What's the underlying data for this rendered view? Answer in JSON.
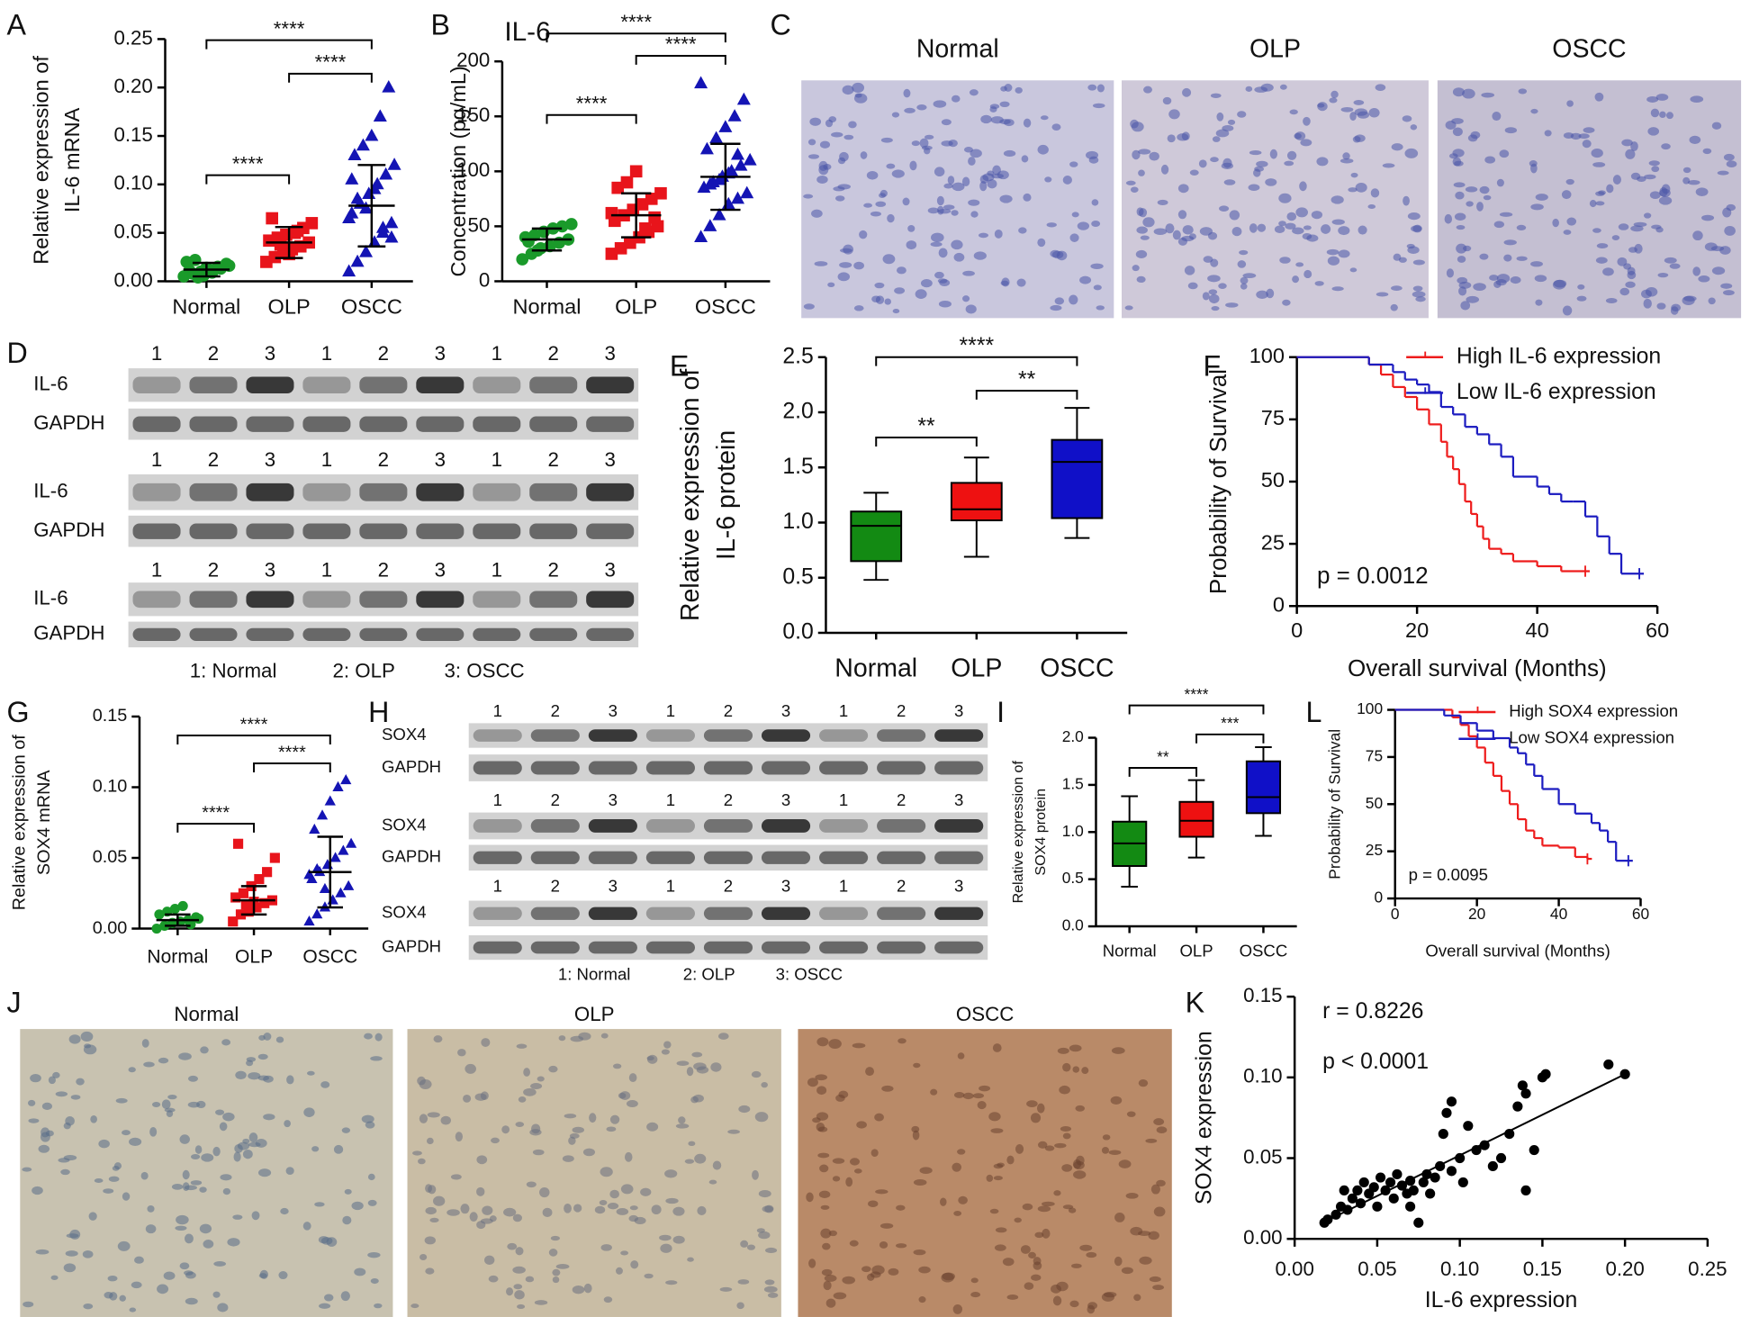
{
  "chart_data": [
    {
      "type": "dotplot",
      "panel": "A",
      "ylabel": [
        "Relative expression of",
        "IL-6 mRNA"
      ],
      "categories": [
        "Normal",
        "OLP",
        "OSCC"
      ],
      "colors": [
        "#1a9a2a",
        "#e8141b",
        "#1414b4"
      ],
      "markers": [
        "circle",
        "square",
        "triangle"
      ],
      "points": [
        [
          0.005,
          0.008,
          0.01,
          0.012,
          0.015,
          0.018,
          0.02,
          0.022,
          0.006,
          0.009,
          0.013,
          0.016,
          0.011,
          0.004,
          0.014
        ],
        [
          0.02,
          0.025,
          0.03,
          0.033,
          0.036,
          0.04,
          0.042,
          0.045,
          0.048,
          0.05,
          0.055,
          0.06,
          0.065,
          0.038,
          0.028,
          0.052
        ],
        [
          0.01,
          0.02,
          0.03,
          0.04,
          0.05,
          0.06,
          0.07,
          0.08,
          0.09,
          0.1,
          0.11,
          0.12,
          0.13,
          0.14,
          0.15,
          0.17,
          0.2,
          0.065,
          0.085,
          0.075,
          0.095,
          0.055,
          0.045,
          0.105
        ]
      ],
      "mean": [
        0.012,
        0.04,
        0.078
      ],
      "sd": [
        0.007,
        0.016,
        0.042
      ],
      "significance": [
        "****",
        "****",
        "****"
      ],
      "ylim": [
        0,
        0.25
      ],
      "yticks": [
        {
          "value": 0,
          "label": "0.00"
        },
        0.05,
        {
          "value": 0.1,
          "label": "0.10"
        },
        0.15,
        {
          "value": 0.2,
          "label": "0.20"
        },
        0.25
      ]
    },
    {
      "type": "dotplot",
      "panel": "B",
      "title": "IL-6",
      "ylabel": [
        "Concentration (pg/mL)"
      ],
      "categories": [
        "Normal",
        "OLP",
        "OSCC"
      ],
      "colors": [
        "#1a9a2a",
        "#e8141b",
        "#1414b4"
      ],
      "markers": [
        "circle",
        "square",
        "triangle"
      ],
      "points": [
        [
          20,
          25,
          30,
          32,
          35,
          38,
          40,
          42,
          45,
          48,
          50,
          52,
          36,
          28
        ],
        [
          25,
          30,
          35,
          40,
          45,
          50,
          55,
          60,
          65,
          70,
          75,
          80,
          85,
          90,
          100,
          48,
          58,
          62
        ],
        [
          40,
          50,
          60,
          70,
          75,
          80,
          85,
          90,
          95,
          100,
          105,
          110,
          120,
          130,
          140,
          150,
          165,
          180,
          88,
          92,
          98,
          115
        ]
      ],
      "mean": [
        38,
        60,
        95
      ],
      "sd": [
        10,
        20,
        30
      ],
      "significance": [
        "****",
        "****",
        "****"
      ],
      "ylim": [
        0,
        200
      ],
      "yticks": [
        0,
        50,
        100,
        150,
        200
      ]
    },
    {
      "type": "image",
      "panel": "C",
      "labels": [
        "Normal",
        "OLP",
        "OSCC"
      ]
    },
    {
      "type": "blot",
      "panel": "D",
      "blocks": [
        {
          "lanes": [
            "1",
            "2",
            "3",
            "1",
            "2",
            "3",
            "1",
            "2",
            "3"
          ],
          "rows": [
            "IL-6",
            "GAPDH"
          ]
        },
        {
          "lanes": [
            "1",
            "2",
            "3",
            "1",
            "2",
            "3",
            "1",
            "2",
            "3"
          ],
          "rows": [
            "IL-6",
            "GAPDH"
          ]
        },
        {
          "lanes": [
            "1",
            "2",
            "3",
            "1",
            "2",
            "3",
            "1",
            "2",
            "3"
          ],
          "rows": [
            "IL-6",
            "GAPDH"
          ]
        }
      ],
      "legend": [
        "1: Normal",
        "2: OLP",
        "3: OSCC"
      ]
    },
    {
      "type": "boxplot",
      "panel": "E",
      "ylabel": [
        "Relative expression of",
        "IL-6 protein"
      ],
      "categories": [
        "Normal",
        "OLP",
        "OSCC"
      ],
      "colors": [
        "#138a13",
        "#ee1111",
        "#1010c8"
      ],
      "min": [
        0.48,
        0.69,
        0.86
      ],
      "q1": [
        0.65,
        1.02,
        1.04
      ],
      "median": [
        0.97,
        1.12,
        1.55
      ],
      "q3": [
        1.1,
        1.36,
        1.75
      ],
      "max": [
        1.27,
        1.59,
        2.04
      ],
      "significance": [
        "**",
        "**",
        "****"
      ],
      "ylim": [
        0,
        2.5
      ],
      "yticks": [
        {
          "value": 0,
          "label": "0.0"
        },
        0.5,
        {
          "value": 1,
          "label": "1.0"
        },
        1.5,
        {
          "value": 2,
          "label": "2.0"
        },
        2.5
      ]
    },
    {
      "type": "survival",
      "panel": "F",
      "xlabel": "Overall survival (Months)",
      "ylabel": "Probability of Survival",
      "annotation": "p = 0.0012",
      "series": [
        {
          "name": "High IL-6 expression",
          "color": "#ee1c1c",
          "x": [
            0,
            12,
            14,
            16,
            18,
            20,
            22,
            24,
            25,
            26,
            27,
            28,
            29,
            30,
            31,
            32,
            34,
            36,
            40,
            44,
            48
          ],
          "values": [
            100,
            97,
            93,
            88,
            84,
            79,
            73,
            66,
            60,
            55,
            49,
            42,
            37,
            32,
            27,
            23,
            21,
            18,
            16,
            14,
            14
          ]
        },
        {
          "name": "Low IL-6 expression",
          "color": "#1c1cc0",
          "x": [
            0,
            12,
            16,
            18,
            20,
            22,
            24,
            26,
            28,
            30,
            32,
            34,
            36,
            40,
            42,
            44,
            46,
            48,
            50,
            52,
            54,
            57
          ],
          "values": [
            100,
            97,
            94,
            91,
            89,
            86,
            80,
            77,
            72,
            69,
            65,
            60,
            52,
            48,
            45,
            42,
            42,
            36,
            28,
            21,
            13,
            13
          ]
        }
      ],
      "xlim": [
        0,
        60
      ],
      "xticks": [
        0,
        20,
        40,
        60
      ],
      "ylim": [
        0,
        100
      ],
      "yticks": [
        0,
        25,
        50,
        75,
        100
      ]
    },
    {
      "type": "dotplot",
      "panel": "G",
      "ylabel": [
        "Relative expression of",
        "SOX4 mRNA"
      ],
      "categories": [
        "Normal",
        "OLP",
        "OSCC"
      ],
      "colors": [
        "#1a9a2a",
        "#e8141b",
        "#1414b4"
      ],
      "markers": [
        "circle",
        "square",
        "triangle"
      ],
      "points": [
        [
          0,
          0.002,
          0.004,
          0.005,
          0.006,
          0.008,
          0.01,
          0.012,
          0.014,
          0.016,
          0.003,
          0.007
        ],
        [
          0.005,
          0.01,
          0.012,
          0.015,
          0.018,
          0.02,
          0.022,
          0.025,
          0.03,
          0.035,
          0.04,
          0.05,
          0.06,
          0.017,
          0.019
        ],
        [
          0.005,
          0.01,
          0.015,
          0.02,
          0.025,
          0.03,
          0.035,
          0.04,
          0.045,
          0.05,
          0.055,
          0.06,
          0.07,
          0.08,
          0.09,
          0.1,
          0.105,
          0.038,
          0.042,
          0.028
        ]
      ],
      "mean": [
        0.006,
        0.02,
        0.04
      ],
      "sd": [
        0.004,
        0.01,
        0.025
      ],
      "significance": [
        "****",
        "****",
        "****"
      ],
      "ylim": [
        0,
        0.15
      ],
      "yticks": [
        {
          "value": 0,
          "label": "0.00"
        },
        0.05,
        {
          "value": 0.1,
          "label": "0.10"
        },
        0.15
      ]
    },
    {
      "type": "blot",
      "panel": "H",
      "blocks": [
        {
          "lanes": [
            "1",
            "2",
            "3",
            "1",
            "2",
            "3",
            "1",
            "2",
            "3"
          ],
          "rows": [
            "SOX4",
            "GAPDH"
          ]
        },
        {
          "lanes": [
            "1",
            "2",
            "3",
            "1",
            "2",
            "3",
            "1",
            "2",
            "3"
          ],
          "rows": [
            "SOX4",
            "GAPDH"
          ]
        },
        {
          "lanes": [
            "1",
            "2",
            "3",
            "1",
            "2",
            "3",
            "1",
            "2",
            "3"
          ],
          "rows": [
            "SOX4",
            "GAPDH"
          ]
        }
      ],
      "legend": [
        "1: Normal",
        "2: OLP",
        "3: OSCC"
      ]
    },
    {
      "type": "boxplot",
      "panel": "I",
      "ylabel": [
        "Relative expression of",
        "SOX4 protein"
      ],
      "categories": [
        "Normal",
        "OLP",
        "OSCC"
      ],
      "colors": [
        "#138a13",
        "#ee1111",
        "#1010c8"
      ],
      "min": [
        0.42,
        0.73,
        0.96
      ],
      "q1": [
        0.64,
        0.95,
        1.2
      ],
      "median": [
        0.88,
        1.12,
        1.37
      ],
      "q3": [
        1.11,
        1.32,
        1.75
      ],
      "max": [
        1.38,
        1.55,
        1.9
      ],
      "significance": [
        "**",
        "***",
        "****"
      ],
      "ylim": [
        0,
        2
      ],
      "yticks": [
        {
          "value": 0,
          "label": "0.0"
        },
        0.5,
        {
          "value": 1,
          "label": "1.0"
        },
        1.5,
        {
          "value": 2,
          "label": "2.0"
        }
      ]
    },
    {
      "type": "survival",
      "panel": "L",
      "xlabel": "Overall survival (Months)",
      "ylabel": "Probability of Survival",
      "annotation": "p = 0.0095",
      "series": [
        {
          "name": "High SOX4 expression",
          "color": "#ee1c1c",
          "x": [
            0,
            14,
            16,
            18,
            20,
            22,
            24,
            26,
            28,
            30,
            32,
            34,
            36,
            40,
            44,
            47
          ],
          "values": [
            100,
            96,
            92,
            86,
            80,
            72,
            65,
            57,
            50,
            42,
            36,
            32,
            28,
            27,
            22,
            21
          ]
        },
        {
          "name": "Low SOX4 expression",
          "color": "#1c1cc0",
          "x": [
            0,
            12,
            16,
            20,
            24,
            28,
            30,
            32,
            34,
            36,
            40,
            44,
            48,
            50,
            52,
            54,
            57
          ],
          "values": [
            100,
            97,
            93,
            89,
            85,
            80,
            77,
            71,
            65,
            58,
            50,
            45,
            40,
            36,
            30,
            20,
            20
          ]
        }
      ],
      "xlim": [
        0,
        60
      ],
      "xticks": [
        0,
        20,
        40,
        60
      ],
      "ylim": [
        0,
        100
      ],
      "yticks": [
        0,
        25,
        50,
        75,
        100
      ]
    },
    {
      "type": "image",
      "panel": "J",
      "labels": [
        "Normal",
        "OLP",
        "OSCC"
      ]
    },
    {
      "type": "scatter",
      "panel": "K",
      "xlabel": "IL-6 expression",
      "ylabel": "SOX4 expression",
      "annotations": [
        "r = 0.8226",
        "p < 0.0001"
      ],
      "x": [
        0.018,
        0.02,
        0.025,
        0.028,
        0.03,
        0.032,
        0.035,
        0.038,
        0.04,
        0.042,
        0.045,
        0.048,
        0.05,
        0.052,
        0.055,
        0.058,
        0.06,
        0.062,
        0.065,
        0.068,
        0.07,
        0.072,
        0.075,
        0.078,
        0.08,
        0.082,
        0.085,
        0.088,
        0.09,
        0.092,
        0.095,
        0.1,
        0.102,
        0.105,
        0.11,
        0.115,
        0.12,
        0.125,
        0.13,
        0.135,
        0.138,
        0.14,
        0.14,
        0.145,
        0.15,
        0.152,
        0.19,
        0.2,
        0.07,
        0.095
      ],
      "values": [
        0.01,
        0.012,
        0.015,
        0.02,
        0.03,
        0.018,
        0.025,
        0.03,
        0.022,
        0.035,
        0.028,
        0.032,
        0.02,
        0.038,
        0.03,
        0.035,
        0.025,
        0.04,
        0.033,
        0.028,
        0.036,
        0.03,
        0.01,
        0.035,
        0.04,
        0.028,
        0.038,
        0.045,
        0.065,
        0.078,
        0.042,
        0.05,
        0.035,
        0.07,
        0.055,
        0.058,
        0.045,
        0.05,
        0.065,
        0.082,
        0.095,
        0.09,
        0.03,
        0.055,
        0.1,
        0.102,
        0.108,
        0.102,
        0.02,
        0.085
      ],
      "fit_x": [
        0.017,
        0.2
      ],
      "fit_y": [
        0.01,
        0.102
      ],
      "xlim": [
        0,
        0.25
      ],
      "xticks": [
        {
          "value": 0,
          "label": "0.00"
        },
        0.05,
        {
          "value": 0.1,
          "label": "0.10"
        },
        0.15,
        {
          "value": 0.2,
          "label": "0.20"
        },
        0.25
      ],
      "ylim": [
        0,
        0.15
      ],
      "yticks": [
        {
          "value": 0,
          "label": "0.00"
        },
        0.05,
        {
          "value": 0.1,
          "label": "0.10"
        },
        0.15
      ]
    }
  ]
}
